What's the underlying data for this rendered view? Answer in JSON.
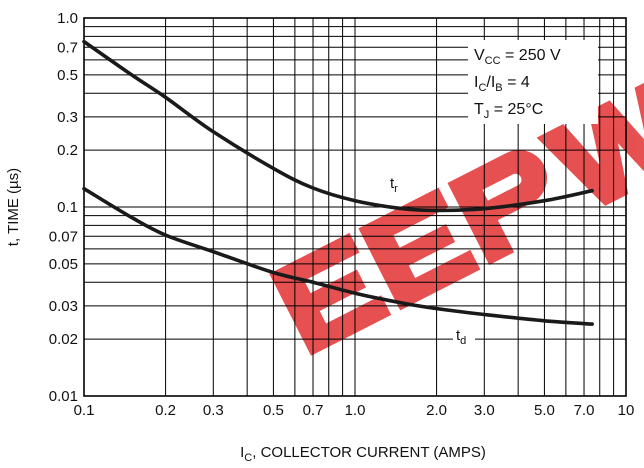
{
  "chart_data": {
    "type": "line",
    "xscale": "log",
    "yscale": "log",
    "xlim": [
      0.1,
      10
    ],
    "ylim": [
      0.01,
      1.0
    ],
    "xticks": [
      "0.1",
      "0.2",
      "0.3",
      "0.5",
      "0.7",
      "1.0",
      "2.0",
      "3.0",
      "5.0",
      "7.0",
      "10"
    ],
    "yticks": [
      "1.0",
      "0.7",
      "0.5",
      "0.3",
      "0.2",
      "0.1",
      "0.07",
      "0.05",
      "0.03",
      "0.02",
      "0.01"
    ],
    "xlabel": {
      "prefix": "I",
      "sub": "C",
      "rest": ", COLLECTOR CURRENT (AMPS)"
    },
    "ylabel": "t, TIME (µs)",
    "grid": true,
    "legend": [
      {
        "main": "V",
        "sub": "CC",
        "rest": " = 250 V"
      },
      {
        "main": "I",
        "sub": "C",
        "mid": "/I",
        "sub2": "B",
        "rest": " = 4"
      },
      {
        "main": "T",
        "sub": "J",
        "rest": " = 25°C"
      }
    ],
    "legend_position": "top-right",
    "series": [
      {
        "name": {
          "main": "t",
          "sub": "r"
        },
        "color": "#1a1a1a",
        "x": [
          0.1,
          0.15,
          0.2,
          0.3,
          0.5,
          0.7,
          1.0,
          1.5,
          2.0,
          3.0,
          5.0,
          7.5
        ],
        "y": [
          0.75,
          0.5,
          0.38,
          0.25,
          0.16,
          0.126,
          0.108,
          0.098,
          0.096,
          0.098,
          0.108,
          0.122
        ]
      },
      {
        "name": {
          "main": "t",
          "sub": "d"
        },
        "color": "#1a1a1a",
        "x": [
          0.1,
          0.15,
          0.2,
          0.3,
          0.5,
          0.7,
          1.0,
          1.5,
          2.0,
          3.0,
          5.0,
          7.5
        ],
        "y": [
          0.125,
          0.088,
          0.071,
          0.058,
          0.045,
          0.04,
          0.035,
          0.031,
          0.029,
          0.027,
          0.025,
          0.024
        ]
      }
    ]
  },
  "watermark": {
    "text": "EEPW",
    "color": "#e02020"
  }
}
